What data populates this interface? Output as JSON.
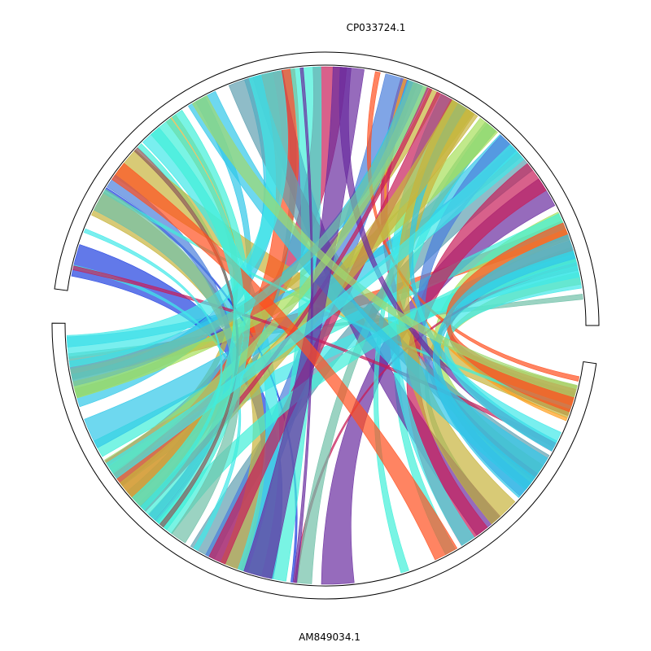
{
  "top_genome": {
    "label": "CP033724.1"
  },
  "bottom_genome": {
    "label": "AM849034.1"
  }
}
